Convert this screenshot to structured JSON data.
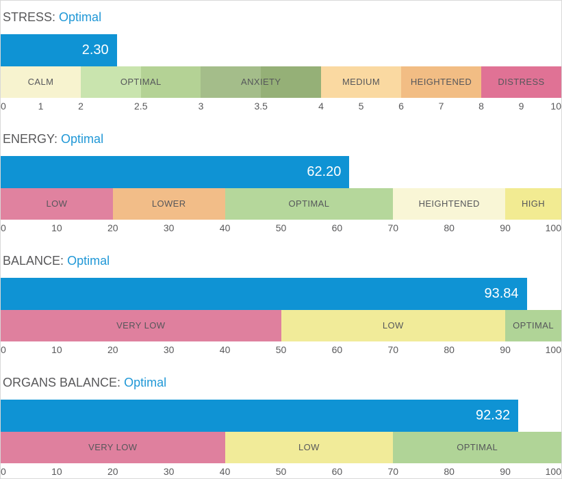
{
  "panel": {
    "border_color": "#d8d8d8",
    "bar_color": "#0f93d4",
    "status_color": "#1f97d6",
    "title_color": "#58585a"
  },
  "chart_data": [
    {
      "id": "stress",
      "type": "bar",
      "title": "STRESS:",
      "status": "Optimal",
      "value": 2.3,
      "value_label": "2.30",
      "axis_range": [
        0,
        10
      ],
      "scale_breakpoints": [
        [
          0,
          0
        ],
        [
          2,
          14.286
        ],
        [
          3,
          35.714
        ],
        [
          4,
          57.143
        ],
        [
          10,
          100
        ]
      ],
      "ticks": [
        {
          "label": "0",
          "value": 0
        },
        {
          "label": "1",
          "value": 1
        },
        {
          "label": "2",
          "value": 2
        },
        {
          "label": "2.5",
          "value": 2.5
        },
        {
          "label": "3",
          "value": 3
        },
        {
          "label": "3.5",
          "value": 3.5
        },
        {
          "label": "4",
          "value": 4
        },
        {
          "label": "5",
          "value": 5
        },
        {
          "label": "6",
          "value": 6
        },
        {
          "label": "7",
          "value": 7
        },
        {
          "label": "8",
          "value": 8
        },
        {
          "label": "9",
          "value": 9
        },
        {
          "label": "10",
          "value": 10
        }
      ],
      "bands": [
        {
          "from": 0,
          "to": 2,
          "color": "#f7f3cf"
        },
        {
          "from": 2,
          "to": 2.5,
          "color": "#c9e4ae"
        },
        {
          "from": 2.5,
          "to": 3,
          "color": "#b4d295"
        },
        {
          "from": 3,
          "to": 3.5,
          "color": "#a4bd8a"
        },
        {
          "from": 3.5,
          "to": 4,
          "color": "#95b077"
        },
        {
          "from": 4,
          "to": 6,
          "color": "#fad9a1"
        },
        {
          "from": 6,
          "to": 8,
          "color": "#f2bd84"
        },
        {
          "from": 8,
          "to": 10,
          "color": "#e07295"
        }
      ],
      "band_labels": [
        {
          "label": "CALM",
          "from": 0,
          "to": 2
        },
        {
          "label": "OPTIMAL",
          "from": 2,
          "to": 3
        },
        {
          "label": "ANXIETY",
          "from": 3,
          "to": 4
        },
        {
          "label": "MEDIUM",
          "from": 4,
          "to": 6
        },
        {
          "label": "HEIGHTENED",
          "from": 6,
          "to": 8
        },
        {
          "label": "DISTRESS",
          "from": 8,
          "to": 10
        }
      ]
    },
    {
      "id": "energy",
      "type": "bar",
      "title": "ENERGY:",
      "status": "Optimal",
      "value": 62.2,
      "value_label": "62.20",
      "axis_range": [
        0,
        100
      ],
      "scale_breakpoints": [
        [
          0,
          0
        ],
        [
          100,
          100
        ]
      ],
      "ticks": [
        {
          "label": "0",
          "value": 0
        },
        {
          "label": "10",
          "value": 10
        },
        {
          "label": "20",
          "value": 20
        },
        {
          "label": "30",
          "value": 30
        },
        {
          "label": "40",
          "value": 40
        },
        {
          "label": "50",
          "value": 50
        },
        {
          "label": "60",
          "value": 60
        },
        {
          "label": "70",
          "value": 70
        },
        {
          "label": "80",
          "value": 80
        },
        {
          "label": "90",
          "value": 90
        },
        {
          "label": "100",
          "value": 100
        }
      ],
      "bands": [
        {
          "from": 0,
          "to": 20,
          "color": "#e0829f"
        },
        {
          "from": 20,
          "to": 40,
          "color": "#f2bd88"
        },
        {
          "from": 40,
          "to": 70,
          "color": "#b5d79b"
        },
        {
          "from": 70,
          "to": 90,
          "color": "#f9f6d6"
        },
        {
          "from": 90,
          "to": 100,
          "color": "#f2eb92"
        }
      ],
      "band_labels": [
        {
          "label": "LOW",
          "from": 0,
          "to": 20
        },
        {
          "label": "LOWER",
          "from": 20,
          "to": 40
        },
        {
          "label": "OPTIMAL",
          "from": 40,
          "to": 70
        },
        {
          "label": "HEIGHTENED",
          "from": 70,
          "to": 90
        },
        {
          "label": "HIGH",
          "from": 90,
          "to": 100
        }
      ]
    },
    {
      "id": "balance",
      "type": "bar",
      "title": "BALANCE:",
      "status": "Optimal",
      "value": 93.84,
      "value_label": "93.84",
      "axis_range": [
        0,
        100
      ],
      "scale_breakpoints": [
        [
          0,
          0
        ],
        [
          100,
          100
        ]
      ],
      "ticks": [
        {
          "label": "0",
          "value": 0
        },
        {
          "label": "10",
          "value": 10
        },
        {
          "label": "20",
          "value": 20
        },
        {
          "label": "30",
          "value": 30
        },
        {
          "label": "40",
          "value": 40
        },
        {
          "label": "50",
          "value": 50
        },
        {
          "label": "60",
          "value": 60
        },
        {
          "label": "70",
          "value": 70
        },
        {
          "label": "80",
          "value": 80
        },
        {
          "label": "90",
          "value": 90
        },
        {
          "label": "100",
          "value": 100
        }
      ],
      "bands": [
        {
          "from": 0,
          "to": 50,
          "color": "#df809e"
        },
        {
          "from": 50,
          "to": 90,
          "color": "#f1eb99"
        },
        {
          "from": 90,
          "to": 100,
          "color": "#b0d497"
        }
      ],
      "band_labels": [
        {
          "label": "VERY LOW",
          "from": 0,
          "to": 50
        },
        {
          "label": "LOW",
          "from": 50,
          "to": 90
        },
        {
          "label": "OPTIMAL",
          "from": 90,
          "to": 100
        }
      ]
    },
    {
      "id": "organs-balance",
      "type": "bar",
      "title": "ORGANS BALANCE:",
      "status": "Optimal",
      "value": 92.32,
      "value_label": "92.32",
      "axis_range": [
        0,
        100
      ],
      "scale_breakpoints": [
        [
          0,
          0
        ],
        [
          100,
          100
        ]
      ],
      "ticks": [
        {
          "label": "0",
          "value": 0
        },
        {
          "label": "10",
          "value": 10
        },
        {
          "label": "20",
          "value": 20
        },
        {
          "label": "30",
          "value": 30
        },
        {
          "label": "40",
          "value": 40
        },
        {
          "label": "50",
          "value": 50
        },
        {
          "label": "60",
          "value": 60
        },
        {
          "label": "70",
          "value": 70
        },
        {
          "label": "80",
          "value": 80
        },
        {
          "label": "90",
          "value": 90
        },
        {
          "label": "100",
          "value": 100
        }
      ],
      "bands": [
        {
          "from": 0,
          "to": 40,
          "color": "#df809e"
        },
        {
          "from": 40,
          "to": 70,
          "color": "#f1eb99"
        },
        {
          "from": 70,
          "to": 100,
          "color": "#b0d497"
        }
      ],
      "band_labels": [
        {
          "label": "VERY LOW",
          "from": 0,
          "to": 40
        },
        {
          "label": "LOW",
          "from": 40,
          "to": 70
        },
        {
          "label": "OPTIMAL",
          "from": 70,
          "to": 100
        }
      ]
    }
  ]
}
